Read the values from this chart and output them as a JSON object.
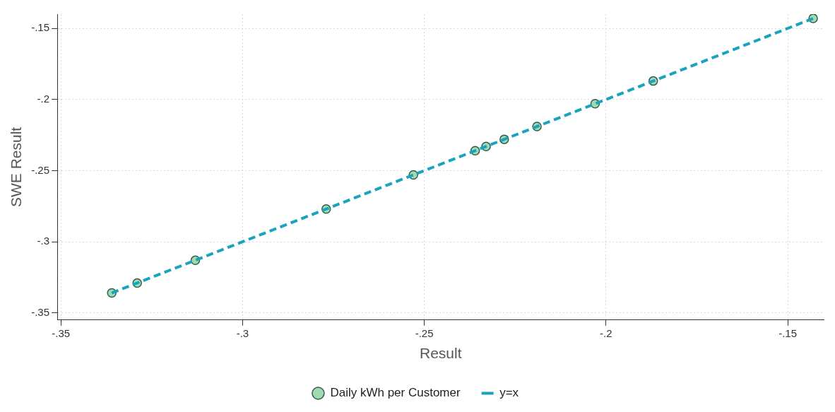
{
  "chart_data": {
    "type": "scatter",
    "xlabel": "Result",
    "ylabel": "SWE Result",
    "xlim": [
      -0.351,
      -0.14
    ],
    "ylim": [
      -0.355,
      -0.14
    ],
    "xticks": [
      {
        "value": -0.35,
        "label": "-.35"
      },
      {
        "value": -0.3,
        "label": "-.3"
      },
      {
        "value": -0.25,
        "label": "-.25"
      },
      {
        "value": -0.2,
        "label": "-.2"
      },
      {
        "value": -0.15,
        "label": "-.15"
      }
    ],
    "yticks": [
      {
        "value": -0.35,
        "label": "-.35"
      },
      {
        "value": -0.3,
        "label": "-.3"
      },
      {
        "value": -0.25,
        "label": "-.25"
      },
      {
        "value": -0.2,
        "label": "-.2"
      },
      {
        "value": -0.15,
        "label": "-.15"
      }
    ],
    "grid": true,
    "legend": "bottom",
    "series": [
      {
        "name": "Daily kWh per Customer",
        "color": "#a3d9b1",
        "marker": "circle",
        "x": [
          -0.336,
          -0.329,
          -0.313,
          -0.277,
          -0.253,
          -0.236,
          -0.233,
          -0.228,
          -0.219,
          -0.203,
          -0.187,
          -0.143
        ],
        "values": [
          -0.336,
          -0.329,
          -0.313,
          -0.277,
          -0.253,
          -0.236,
          -0.233,
          -0.228,
          -0.219,
          -0.203,
          -0.187,
          -0.143
        ]
      },
      {
        "name": "y=x",
        "type": "line",
        "color": "#1aa3be",
        "line_style": "dashed",
        "marker": "none",
        "x": [
          -0.336,
          -0.143
        ],
        "values": [
          -0.336,
          -0.143
        ]
      }
    ]
  }
}
